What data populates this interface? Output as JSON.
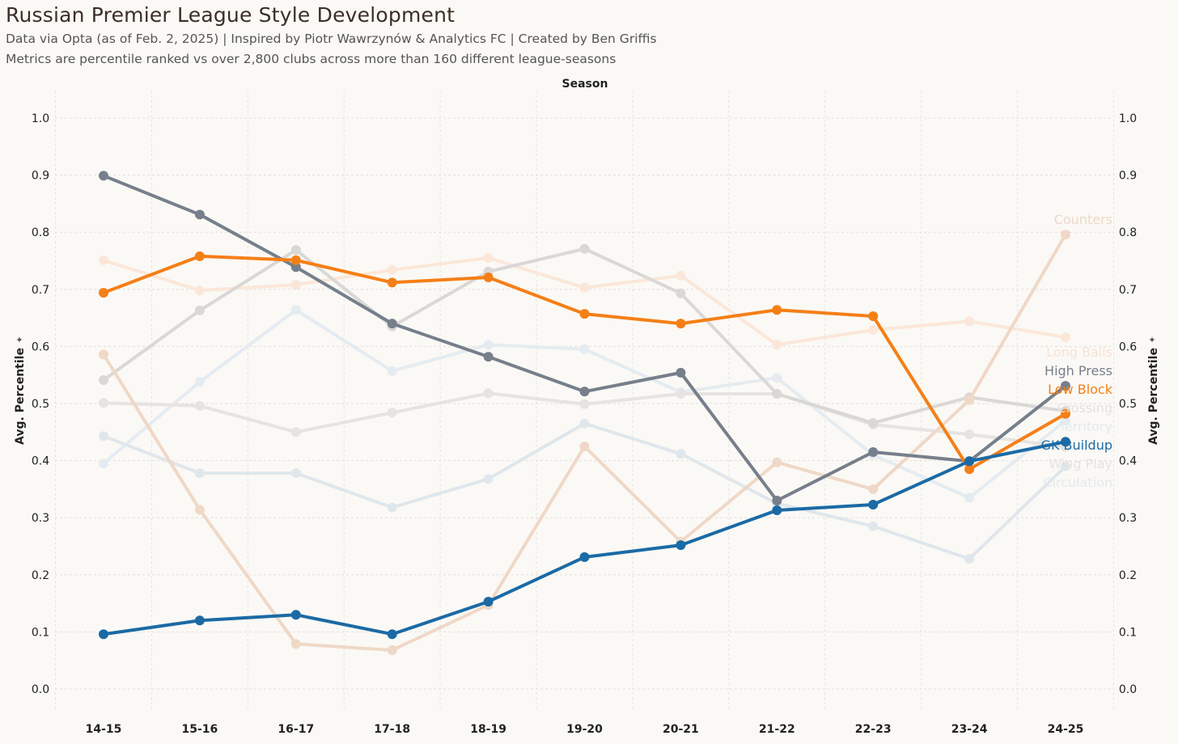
{
  "header": {
    "title": "Russian Premier League Style Development",
    "subtitle1": "Data via Opta (as of Feb. 2, 2025) | Inspired by Piotr Wawrzynów & Analytics FC | Created by Ben Griffis",
    "subtitle2": "Metrics are percentile ranked vs over 2,800 clubs across more than 160 different league-seasons"
  },
  "chart_data": {
    "type": "line",
    "title": "Russian Premier League Style Development",
    "xlabel": "Season",
    "ylabel": "Avg. Percentile",
    "ylim": [
      0,
      1
    ],
    "yticks": [
      "0.0",
      "0.1",
      "0.2",
      "0.3",
      "0.4",
      "0.5",
      "0.6",
      "0.7",
      "0.8",
      "0.9",
      "1.0"
    ],
    "grid": true,
    "categories": [
      "14-15",
      "15-16",
      "16-17",
      "17-18",
      "18-19",
      "19-20",
      "20-21",
      "21-22",
      "22-23",
      "23-24",
      "24-25"
    ],
    "series": [
      {
        "name": "Long Balls",
        "color": "#fbe7d9",
        "label_color": "#f6e3d6",
        "values": [
          0.751,
          0.698,
          0.708,
          0.734,
          0.755,
          0.703,
          0.724,
          0.603,
          0.629,
          0.644,
          0.616
        ]
      },
      {
        "name": "Territory",
        "color": "#e4ecf1",
        "label_color": "#e3eaef",
        "values": [
          0.395,
          0.538,
          0.664,
          0.557,
          0.603,
          0.595,
          0.52,
          0.545,
          0.41,
          0.335,
          0.47
        ]
      },
      {
        "name": "Circulation",
        "color": "#dfe7ec",
        "label_color": "#e3e9ed",
        "values": [
          0.443,
          0.378,
          0.378,
          0.318,
          0.368,
          0.465,
          0.412,
          0.325,
          0.285,
          0.228,
          0.39
        ]
      },
      {
        "name": "Wing Play",
        "color": "#e6e3e0",
        "label_color": "#e6e3e0",
        "values": [
          0.501,
          0.496,
          0.45,
          0.484,
          0.518,
          0.499,
          0.517,
          0.517,
          0.463,
          0.446,
          0.424
        ]
      },
      {
        "name": "Crossing",
        "color": "#d9d8d7",
        "label_color": "#e4e2e0",
        "values": [
          0.541,
          0.663,
          0.769,
          0.635,
          0.731,
          0.771,
          0.693,
          0.517,
          0.466,
          0.511,
          0.487
        ]
      },
      {
        "name": "Counters",
        "color": "#efd8c7",
        "label_color": "#eed8c8",
        "values": [
          0.586,
          0.314,
          0.079,
          0.068,
          0.147,
          0.425,
          0.258,
          0.397,
          0.35,
          0.506,
          0.796
        ]
      },
      {
        "name": "High Press",
        "color": "#767f8b",
        "label_color": "#767f8b",
        "values": [
          0.899,
          0.831,
          0.739,
          0.64,
          0.582,
          0.521,
          0.554,
          0.33,
          0.415,
          0.399,
          0.531
        ]
      },
      {
        "name": "Low Block",
        "color": "#f57f17",
        "label_color": "#f57f17",
        "values": [
          0.694,
          0.758,
          0.751,
          0.712,
          0.721,
          0.657,
          0.64,
          0.664,
          0.653,
          0.385,
          0.482
        ]
      },
      {
        "name": "GK Buildup",
        "color": "#1b6aa5",
        "label_color": "#1b6aa5",
        "values": [
          0.096,
          0.12,
          0.13,
          0.096,
          0.153,
          0.231,
          0.252,
          0.313,
          0.323,
          0.399,
          0.433
        ]
      }
    ]
  }
}
